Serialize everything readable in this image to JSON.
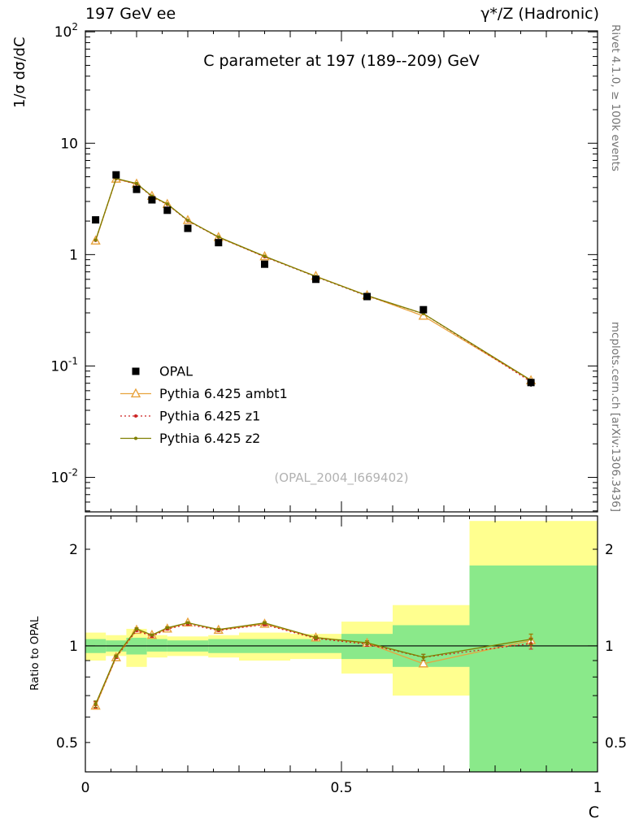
{
  "header": {
    "left": "197 GeV ee",
    "right": "γ*/Z (Hadronic)"
  },
  "sidebar": {
    "rivet": "Rivet 4.1.0, ≥ 100k events",
    "mcplots": "mcplots.cern.ch [arXiv:1306.3436]"
  },
  "watermark": "(OPAL_2004_I669402)",
  "chart_data": {
    "type": "line",
    "title": "C parameter at 197 (189--209) GeV",
    "xlabel": "C",
    "ylabel_main": "1/σ  dσ/dC",
    "ylabel_ratio": "Ratio to OPAL",
    "xlim": [
      0,
      1
    ],
    "ylim_main": [
      0.0049,
      102
    ],
    "ylim_ratio": [
      0.405,
      2.54
    ],
    "axes": {
      "x": {
        "min": 0,
        "max": 1,
        "ticks": [
          {
            "v": 0,
            "label": "0"
          },
          {
            "v": 0.5,
            "label": "0.5"
          },
          {
            "v": 1,
            "label": "1"
          }
        ]
      },
      "y_main": {
        "scale": "log",
        "min": 0.0049,
        "max": 102,
        "ticks": [
          {
            "v": 100,
            "base": "10",
            "exp": "2"
          },
          {
            "v": 10,
            "base": "10",
            "exp": ""
          },
          {
            "v": 1,
            "base": "1",
            "exp": ""
          },
          {
            "v": 0.1,
            "base": "10",
            "exp": "-1"
          },
          {
            "v": 0.01,
            "base": "10",
            "exp": "-2"
          }
        ]
      },
      "y_ratio": {
        "scale": "log",
        "min": 0.405,
        "max": 2.54,
        "ticks": [
          {
            "v": 2,
            "base": "2",
            "exp": ""
          },
          {
            "v": 1,
            "base": "1",
            "exp": ""
          },
          {
            "v": 0.5,
            "base": "0.5",
            "exp": ""
          }
        ]
      }
    },
    "x": [
      0.02,
      0.06,
      0.1,
      0.13,
      0.16,
      0.2,
      0.26,
      0.35,
      0.45,
      0.55,
      0.66,
      0.87
    ],
    "reference": {
      "name": "OPAL",
      "color": "#000000",
      "marker": "square",
      "values": [
        2.05,
        5.2,
        3.85,
        3.1,
        2.5,
        1.72,
        1.28,
        0.82,
        0.6,
        0.42,
        0.32,
        0.071
      ],
      "errors": [
        0.1,
        0.16,
        0.12,
        0.09,
        0.08,
        0.05,
        0.04,
        0.025,
        0.02,
        0.017,
        0.016,
        0.006
      ]
    },
    "series": [
      {
        "name": "Pythia 6.425 ambt1",
        "color": "#e8a33d",
        "line": "solid",
        "marker": "triangle-open",
        "values": [
          1.33,
          4.78,
          4.31,
          3.35,
          2.83,
          2.03,
          1.43,
          0.96,
          0.64,
          0.43,
          0.281,
          0.074
        ],
        "ratio": [
          0.65,
          0.92,
          1.12,
          1.08,
          1.13,
          1.18,
          1.12,
          1.17,
          1.06,
          1.02,
          0.88,
          1.04
        ],
        "ratio_err": [
          0.015,
          0.008,
          0.008,
          0.008,
          0.008,
          0.008,
          0.008,
          0.01,
          0.012,
          0.015,
          0.02,
          0.045
        ]
      },
      {
        "name": "Pythia 6.425 z1",
        "color": "#cc2222",
        "line": "dotted",
        "marker": "dot",
        "values": [
          1.34,
          4.79,
          4.3,
          3.32,
          2.82,
          2.01,
          1.43,
          0.955,
          0.633,
          0.425,
          0.295,
          0.0722
        ],
        "ratio": [
          0.655,
          0.921,
          1.117,
          1.071,
          1.128,
          1.168,
          1.117,
          1.165,
          1.055,
          1.012,
          0.921,
          1.017
        ],
        "ratio_err": [
          0.015,
          0.008,
          0.008,
          0.008,
          0.008,
          0.008,
          0.008,
          0.01,
          0.012,
          0.015,
          0.02,
          0.04
        ]
      },
      {
        "name": "Pythia 6.425 z2",
        "color": "#7f7f00",
        "line": "solid",
        "marker": "dot",
        "values": [
          1.35,
          4.83,
          4.35,
          3.35,
          2.85,
          2.03,
          1.44,
          0.967,
          0.637,
          0.429,
          0.295,
          0.0745
        ],
        "ratio": [
          0.659,
          0.929,
          1.13,
          1.081,
          1.139,
          1.18,
          1.125,
          1.179,
          1.062,
          1.022,
          0.922,
          1.049
        ],
        "ratio_err": [
          0.015,
          0.008,
          0.008,
          0.008,
          0.008,
          0.008,
          0.008,
          0.01,
          0.012,
          0.015,
          0.02,
          0.04
        ]
      }
    ],
    "ratio_bands": [
      {
        "x0": 0.0,
        "x1": 0.04,
        "yellow": [
          0.9,
          1.1
        ],
        "green": [
          0.95,
          1.05
        ]
      },
      {
        "x0": 0.04,
        "x1": 0.08,
        "yellow": [
          0.93,
          1.08
        ],
        "green": [
          0.96,
          1.04
        ]
      },
      {
        "x0": 0.08,
        "x1": 0.12,
        "yellow": [
          0.86,
          1.13
        ],
        "green": [
          0.94,
          1.06
        ]
      },
      {
        "x0": 0.12,
        "x1": 0.16,
        "yellow": [
          0.92,
          1.08
        ],
        "green": [
          0.96,
          1.05
        ]
      },
      {
        "x0": 0.16,
        "x1": 0.24,
        "yellow": [
          0.93,
          1.07
        ],
        "green": [
          0.96,
          1.04
        ]
      },
      {
        "x0": 0.24,
        "x1": 0.3,
        "yellow": [
          0.92,
          1.08
        ],
        "green": [
          0.95,
          1.05
        ]
      },
      {
        "x0": 0.3,
        "x1": 0.4,
        "yellow": [
          0.9,
          1.1
        ],
        "green": [
          0.95,
          1.05
        ]
      },
      {
        "x0": 0.4,
        "x1": 0.5,
        "yellow": [
          0.91,
          1.09
        ],
        "green": [
          0.95,
          1.05
        ]
      },
      {
        "x0": 0.5,
        "x1": 0.6,
        "yellow": [
          0.82,
          1.19
        ],
        "green": [
          0.91,
          1.09
        ]
      },
      {
        "x0": 0.6,
        "x1": 0.75,
        "yellow": [
          0.7,
          1.34
        ],
        "green": [
          0.86,
          1.16
        ]
      },
      {
        "x0": 0.75,
        "x1": 1.0,
        "yellow": [
          0.33,
          2.45
        ],
        "green": [
          0.33,
          1.78
        ]
      }
    ],
    "band_colors": {
      "yellow": "#ffff8f",
      "green": "#8ae98a"
    },
    "legend": {
      "items": [
        {
          "label": "OPAL",
          "marker": "square",
          "color": "#000000",
          "line": "none"
        },
        {
          "label": "Pythia 6.425 ambt1",
          "marker": "triangle-open",
          "color": "#e8a33d",
          "line": "solid"
        },
        {
          "label": "Pythia 6.425 z1",
          "marker": "dot",
          "color": "#cc2222",
          "line": "dotted"
        },
        {
          "label": "Pythia 6.425 z2",
          "marker": "dot",
          "color": "#7f7f00",
          "line": "solid"
        }
      ]
    }
  }
}
